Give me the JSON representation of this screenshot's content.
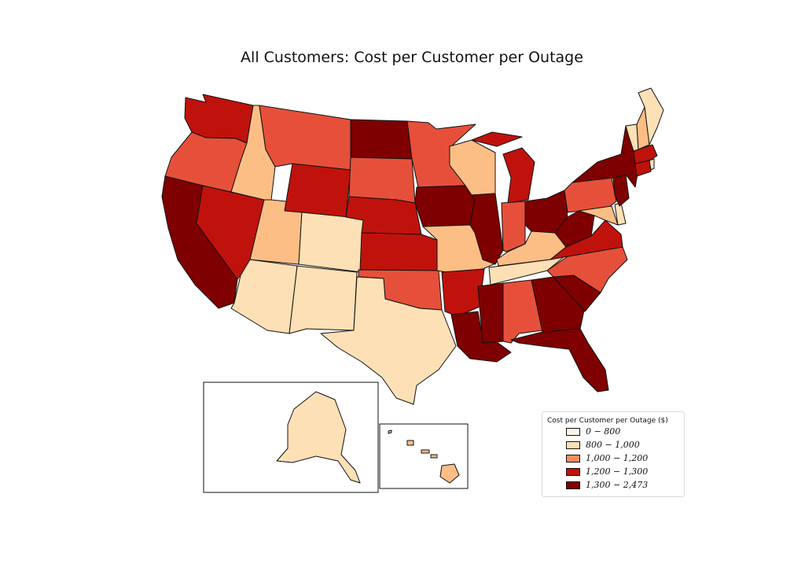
{
  "title": "All Customers: Cost per Customer per Outage",
  "legend": {
    "title": "Cost per Customer per Outage ($)",
    "bins": [
      {
        "label": "0 − 800",
        "color": "#fff5eb"
      },
      {
        "label": "800 − 1,000",
        "color": "#fee0b6"
      },
      {
        "label": "1,000 − 1,200",
        "color": "#fc8d59"
      },
      {
        "label": "1,200 − 1,300",
        "color": "#c0120c"
      },
      {
        "label": "1,300 − 2,473",
        "color": "#7f0000"
      }
    ]
  },
  "palette": {
    "light": "#fee0b6",
    "tan": "#fdbe85",
    "orange": "#e6503a",
    "red": "#c0120c",
    "darkred": "#7f0000"
  },
  "states": {
    "WA": "red",
    "OR": "orange",
    "CA": "darkred",
    "NV": "red",
    "ID": "tan",
    "MT": "orange",
    "WY": "red",
    "UT": "tan",
    "AZ": "light",
    "CO": "light",
    "NM": "light",
    "TX": "light",
    "ND": "darkred",
    "SD": "orange",
    "NE": "red",
    "KS": "red",
    "OK": "orange",
    "MN": "orange",
    "IA": "darkred",
    "MO": "tan",
    "AR": "red",
    "LA": "darkred",
    "WI": "tan",
    "IL": "darkred",
    "MI": "red",
    "IN": "orange",
    "OH": "darkred",
    "KY": "tan",
    "TN": "light",
    "MS": "darkred",
    "AL": "orange",
    "GA": "darkred",
    "FL": "darkred",
    "SC": "darkred",
    "NC": "orange",
    "VA": "red",
    "WV": "darkred",
    "PA": "orange",
    "NY": "darkred",
    "NJ": "darkred",
    "MD": "tan",
    "DE": "light",
    "CT": "red",
    "RI": "light",
    "MA": "red",
    "VT": "light",
    "NH": "tan",
    "ME": "light",
    "AK": "light",
    "HI": "tan"
  }
}
